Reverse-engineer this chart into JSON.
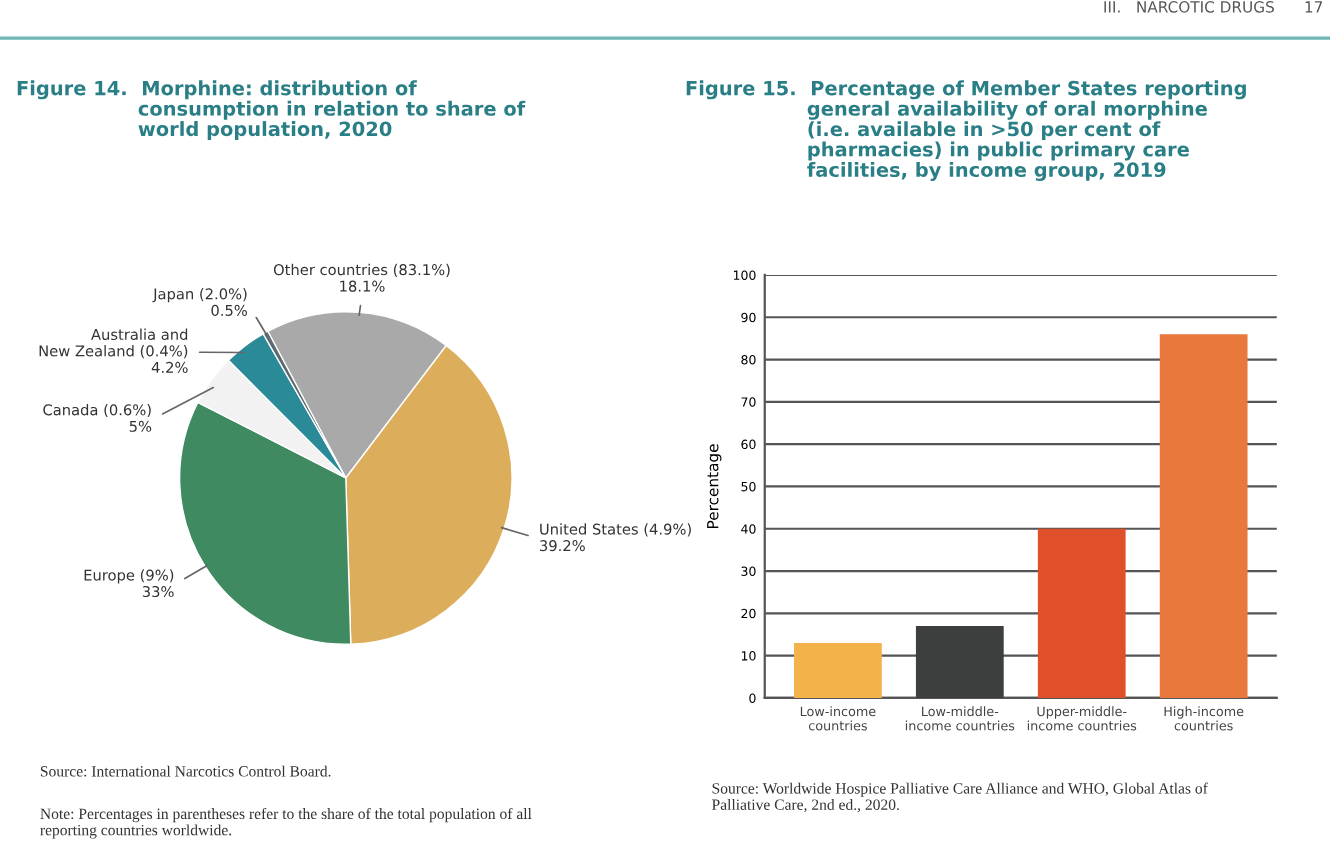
{
  "chart_data": [
    {
      "type": "pie",
      "title": "Figure 14.  Morphine: distribution of\n                  consumption in relation to share of\n                  world population, 2020",
      "categories": [
        "Other countries (83.1%)",
        "United States (4.9%)",
        "Europe (9%)",
        "Canada (0.6%)",
        "Australia and\nNew Zealand (0.4%)",
        "Japan (2.0%)"
      ],
      "values": [
        18.1,
        39.2,
        33,
        5,
        4.2,
        0.5
      ],
      "value_labels": [
        "18.1%",
        "39.2%",
        "33%",
        "5%",
        "4.2%",
        "0.5%"
      ],
      "colors": [
        "#a9a9a9",
        "#dcae5c",
        "#3f8a60",
        "#f2f2f2",
        "#2b8a98",
        "#5a6a70"
      ],
      "annotations": [
        "Source: International Narcotics Control Board.",
        "Note: Percentages in parentheses refer to the share of the total population of all\nreporting countries worldwide."
      ]
    },
    {
      "type": "bar",
      "title": "Figure 15.  Percentage of Member States reporting\n                  general availability of oral morphine\n                  (i.e. available in >50 per cent of\n                  pharmacies) in public primary care\n                  facilities, by income group, 2019",
      "categories": [
        "Low-income\ncountries",
        "Low-middle-\nincome countries",
        "Upper-middle-\nincome countries",
        "High-income\ncountries"
      ],
      "values": [
        13,
        17,
        40,
        86
      ],
      "colors": [
        "#f3b24a",
        "#3d3f3f",
        "#e0502a",
        "#e8783c"
      ],
      "ylabel": "Percentage",
      "ylim": [
        0,
        100
      ],
      "yticks": [
        0,
        10,
        20,
        30,
        40,
        50,
        60,
        70,
        80,
        90,
        100
      ],
      "grid": "y",
      "annotations": [
        "Source: Worldwide Hospice Palliative Care Alliance and WHO, Global Atlas of\nPalliative Care, 2nd ed., 2020.",
        "III.   NARCOTIC DRUGS      17"
      ]
    }
  ]
}
